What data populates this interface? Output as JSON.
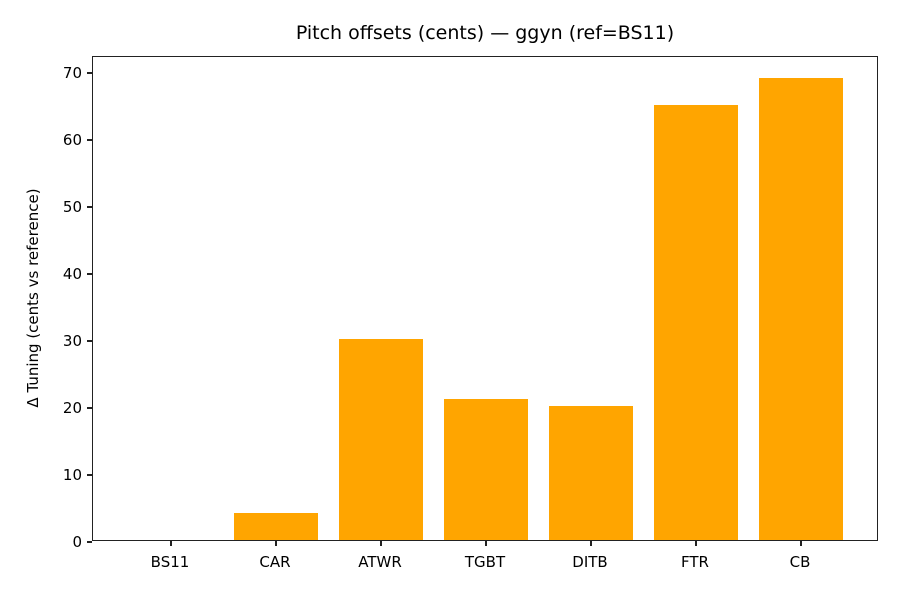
{
  "chart_data": {
    "type": "bar",
    "title": "Pitch offsets (cents) — ggyn (ref=BS11)",
    "xlabel": "",
    "ylabel": "Δ Tuning (cents vs reference)",
    "categories": [
      "BS11",
      "CAR",
      "ATWR",
      "TGBT",
      "DITB",
      "FTR",
      "CB"
    ],
    "values": [
      0,
      4,
      30,
      21,
      20,
      65,
      69
    ],
    "ylim": [
      0,
      72.4
    ],
    "yticks": [
      0,
      10,
      20,
      30,
      40,
      50,
      60,
      70
    ],
    "grid": false,
    "legend": null,
    "bar_color": "#ffa500"
  }
}
